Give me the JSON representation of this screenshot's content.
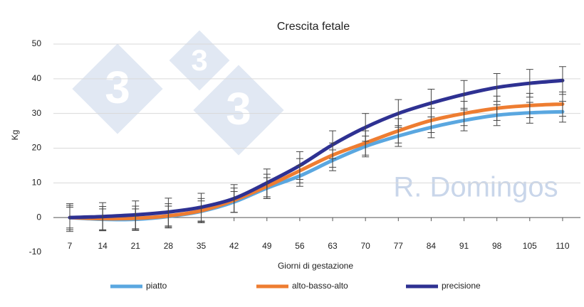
{
  "chart_data": {
    "type": "line",
    "title": "Crescita fetale",
    "x_label": "Giorni di gestazione",
    "y_label": "Kg",
    "watermark": "R. Domingos",
    "logo_text": "3",
    "categories": [
      "7",
      "14",
      "21",
      "28",
      "35",
      "42",
      "49",
      "56",
      "63",
      "70",
      "77",
      "84",
      "91",
      "98",
      "105",
      "110"
    ],
    "ylim": [
      -10,
      50
    ],
    "yticks": [
      -10,
      0,
      10,
      20,
      30,
      40,
      50
    ],
    "grid": true,
    "series": [
      {
        "name": "piatto",
        "color": "#5aa7e0",
        "values": [
          0,
          -0.5,
          -0.5,
          0.3,
          1.8,
          4.5,
          8.5,
          12,
          16.5,
          20.5,
          23.5,
          26,
          28,
          29.5,
          30.2,
          30.5
        ],
        "errors": [
          3,
          3,
          3,
          3,
          3,
          3,
          3,
          3,
          3,
          3,
          3,
          3,
          3,
          3,
          3,
          3
        ]
      },
      {
        "name": "alto-basso-alto",
        "color": "#ee7d31",
        "values": [
          0,
          -0.3,
          -0.2,
          0.5,
          2,
          5,
          9,
          13.5,
          18,
          21.5,
          25,
          28,
          30,
          31.5,
          32.3,
          32.7
        ],
        "errors": [
          3.5,
          3.5,
          3.5,
          3.5,
          3.5,
          3.5,
          3.5,
          3.5,
          3.5,
          3.5,
          3.5,
          3.5,
          3.5,
          3.5,
          3.5,
          3.5
        ]
      },
      {
        "name": "precisione",
        "color": "#2e3192",
        "values": [
          0,
          0.3,
          0.8,
          1.6,
          3,
          5.5,
          10,
          15,
          21,
          26,
          30,
          33,
          35.5,
          37.5,
          38.7,
          39.5
        ],
        "errors": [
          4,
          4,
          4,
          4,
          4,
          4,
          4,
          4,
          4,
          4,
          4,
          4,
          4,
          4,
          4,
          4
        ]
      }
    ]
  }
}
